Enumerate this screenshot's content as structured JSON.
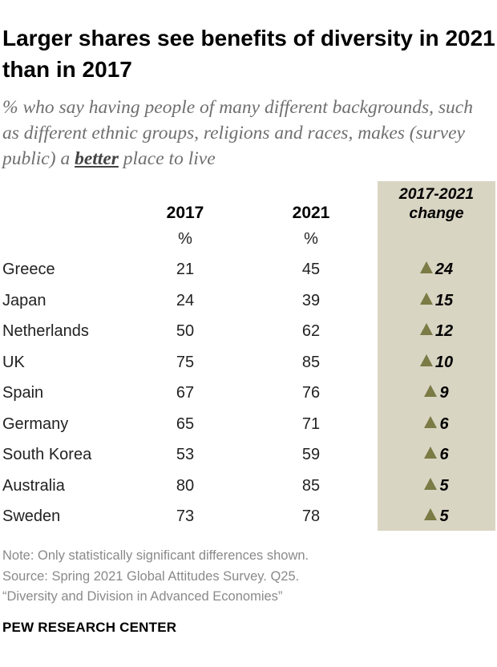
{
  "title": "Larger shares see benefits of diversity in 2021 than in 2017",
  "subtitle": {
    "before": "% who say having people of many different backgrounds, such as different ethnic groups, religions and races, makes (survey public) a ",
    "emphasis": "better",
    "after": " place to live"
  },
  "chart_data": {
    "type": "table",
    "columns": {
      "y2017": "2017",
      "y2021": "2021",
      "unit": "%",
      "change_line1": "2017-2021",
      "change_line2": "change"
    },
    "rows": [
      {
        "country": "Greece",
        "v2017": "21",
        "v2021": "45",
        "change": "24"
      },
      {
        "country": "Japan",
        "v2017": "24",
        "v2021": "39",
        "change": "15"
      },
      {
        "country": "Netherlands",
        "v2017": "50",
        "v2021": "62",
        "change": "12"
      },
      {
        "country": "UK",
        "v2017": "75",
        "v2021": "85",
        "change": "10"
      },
      {
        "country": "Spain",
        "v2017": "67",
        "v2021": "76",
        "change": "9"
      },
      {
        "country": "Germany",
        "v2017": "65",
        "v2021": "71",
        "change": "6"
      },
      {
        "country": "South Korea",
        "v2017": "53",
        "v2021": "59",
        "change": "6"
      },
      {
        "country": "Australia",
        "v2017": "80",
        "v2021": "85",
        "change": "5"
      },
      {
        "country": "Sweden",
        "v2017": "73",
        "v2021": "78",
        "change": "5"
      }
    ],
    "change_marker": "up-triangle-icon",
    "colors": {
      "change_band": "#d9d5c3",
      "triangle": "#7a7b45"
    }
  },
  "notes": {
    "note": "Note: Only statistically significant differences shown.",
    "source": "Source: Spring 2021 Global Attitudes Survey. Q25.",
    "report": "“Diversity and Division in Advanced Economies”"
  },
  "org": "PEW RESEARCH CENTER"
}
